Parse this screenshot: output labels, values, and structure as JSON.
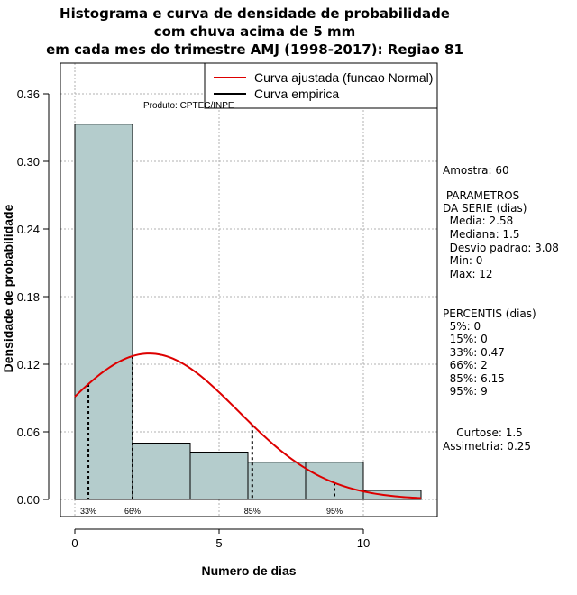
{
  "title_lines": [
    "Histograma e curva de densidade de probabilidade",
    "com chuva acima de 5 mm",
    "em cada mes do trimestre AMJ (1998-2017): Regiao 81"
  ],
  "product_label": "Produto: CPTEC/INPE",
  "legend": {
    "fitted": "Curva ajustada (funcao Normal)",
    "empirical": "Curva empirica"
  },
  "colors": {
    "bar_fill": "#b4cccc",
    "fitted_curve": "#dd0000",
    "grid": "#b0b0b0",
    "axis": "#000000"
  },
  "chart_data": {
    "type": "bar",
    "title": "Histograma e curva de densidade de probabilidade com chuva acima de 5 mm em cada mes do trimestre AMJ (1998-2017): Regiao 81",
    "xlabel": "Numero de dias",
    "ylabel": "Densidade de probabilidade",
    "xlim": [
      -1,
      12.5
    ],
    "ylim": [
      0,
      0.38
    ],
    "x_ticks": [
      0,
      5,
      10
    ],
    "y_ticks": [
      0.0,
      0.06,
      0.12,
      0.18,
      0.24,
      0.3,
      0.36
    ],
    "y_tick_labels": [
      "0.00",
      "0.06",
      "0.12",
      "0.18",
      "0.24",
      "0.30",
      "0.36"
    ],
    "bins": [
      {
        "start": 0,
        "end": 2,
        "density": 0.333
      },
      {
        "start": 2,
        "end": 4,
        "density": 0.05
      },
      {
        "start": 4,
        "end": 6,
        "density": 0.042
      },
      {
        "start": 6,
        "end": 8,
        "density": 0.033
      },
      {
        "start": 8,
        "end": 10,
        "density": 0.033
      },
      {
        "start": 10,
        "end": 12,
        "density": 0.008
      }
    ],
    "normal_fit": {
      "mean": 2.58,
      "sd": 3.08,
      "x_from": 0,
      "x_to": 12
    },
    "percentile_markers": [
      {
        "label": "33%",
        "x": 0.47
      },
      {
        "label": "66%",
        "x": 2
      },
      {
        "label": "85%",
        "x": 6.15
      },
      {
        "label": "95%",
        "x": 9
      }
    ],
    "grid": true
  },
  "stats": {
    "sample": "Amostra: 60",
    "params_header": [
      " PARAMETROS",
      "DA SERIE (dias)"
    ],
    "params": [
      "  Media: 2.58",
      "  Mediana: 1.5",
      "  Desvio padrao: 3.08",
      "  Min: 0",
      "  Max: 12"
    ],
    "percentiles_header": "PERCENTIS (dias)",
    "percentiles": [
      "  5%: 0",
      "  15%: 0",
      "  33%: 0.47",
      "  66%: 2",
      "  85%: 6.15",
      "  95%: 9"
    ],
    "kurtosis": "    Curtose: 1.5",
    "skewness": "Assimetria: 0.25"
  }
}
